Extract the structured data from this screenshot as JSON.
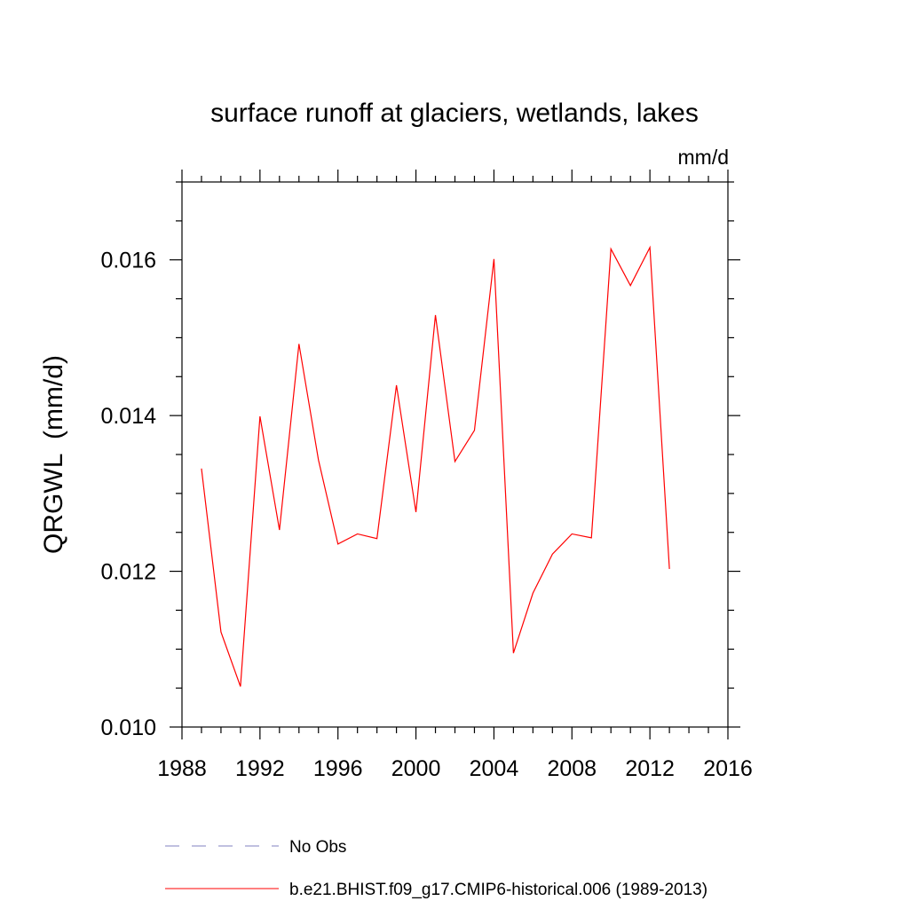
{
  "chart_data": {
    "type": "line",
    "title": "surface runoff at glaciers, wetlands, lakes",
    "units": "mm/d",
    "xlabel": "",
    "ylabel": "QRGWL  (mm/d)",
    "xlim": [
      1988,
      2016
    ],
    "ylim": [
      0.01,
      0.017
    ],
    "x_ticks": [
      "1988",
      "1992",
      "1996",
      "2000",
      "2004",
      "2008",
      "2012",
      "2016"
    ],
    "y_ticks": [
      "0.010",
      "0.012",
      "0.014",
      "0.016"
    ],
    "grid": false,
    "series": [
      {
        "name": "b.e21.BHIST.f09_g17.CMIP6-historical.006 (1989-2013)",
        "color": "#ff0000",
        "style": "solid",
        "x": [
          1989,
          1990,
          1991,
          1992,
          1993,
          1994,
          1995,
          1996,
          1997,
          1998,
          1999,
          2000,
          2001,
          2002,
          2003,
          2004,
          2005,
          2006,
          2007,
          2008,
          2009,
          2010,
          2011,
          2012,
          2013
        ],
        "y": [
          0.01332,
          0.01122,
          0.01052,
          0.01399,
          0.01253,
          0.01492,
          0.01343,
          0.01235,
          0.01248,
          0.01242,
          0.01439,
          0.01276,
          0.01529,
          0.01341,
          0.01381,
          0.01601,
          0.01095,
          0.01172,
          0.01222,
          0.01248,
          0.01243,
          0.01614,
          0.01567,
          0.01616,
          0.01203
        ]
      }
    ],
    "legend": {
      "placement": "bottom",
      "entries": [
        {
          "label": "No Obs",
          "color": "#8080c0",
          "style": "dashed"
        },
        {
          "label": "b.e21.BHIST.f09_g17.CMIP6-historical.006 (1989-2013)",
          "color": "#ff0000",
          "style": "solid"
        }
      ]
    }
  }
}
